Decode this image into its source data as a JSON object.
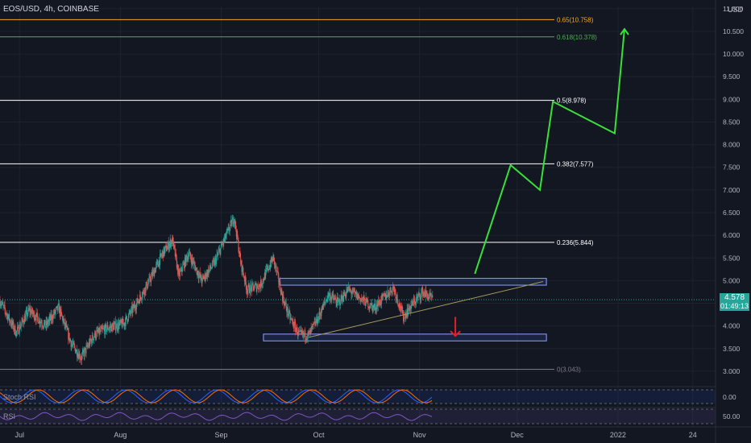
{
  "header": {
    "symbol": "EOS/USD, 4h, COINBASE",
    "currency": "USD"
  },
  "last_price": {
    "value": "4.578",
    "countdown": "01:49:13",
    "color": "#26a69a"
  },
  "indicators": {
    "stoch_rsi_label": "Stoch RSI",
    "stoch_rsi_axis": "0.00",
    "rsi_label": "RSI",
    "rsi_axis": "50.00"
  },
  "colors": {
    "background": "#131722",
    "up": "#26a69a",
    "down": "#ef5350",
    "projection": "#3ae03a",
    "breakdown": "#e3202a",
    "fib_top": "#f5a623",
    "fib_618": "#4caf50",
    "fib_mid": "#ffffff",
    "fib_zero": "#787b86",
    "trendline": "#a39a5c",
    "box_border": "#8fa1ff"
  },
  "chart_data": {
    "type": "candlestick",
    "y_axis": {
      "range": [
        2.75,
        11.05
      ],
      "ticks": [
        "11.000",
        "10.500",
        "10.000",
        "9.500",
        "9.000",
        "8.500",
        "8.000",
        "7.500",
        "7.000",
        "6.500",
        "6.000",
        "5.500",
        "5.000",
        "4.500",
        "4.000",
        "3.500",
        "3.000"
      ],
      "tick_values": [
        11,
        10.5,
        10,
        9.5,
        9,
        8.5,
        8,
        7.5,
        7,
        6.5,
        6,
        5.5,
        5,
        4.5,
        4,
        3.5,
        3
      ]
    },
    "x_axis": {
      "start_date": "2021-06-25",
      "end_date": "2022-01-31",
      "ticks": [
        {
          "label": "Jul",
          "date": "2021-07-01"
        },
        {
          "label": "Aug",
          "date": "2021-08-01"
        },
        {
          "label": "Sep",
          "date": "2021-09-01"
        },
        {
          "label": "Oct",
          "date": "2021-10-01"
        },
        {
          "label": "Nov",
          "date": "2021-11-01"
        },
        {
          "label": "Dec",
          "date": "2021-12-01"
        },
        {
          "label": "2022",
          "date": "2022-01-01"
        },
        {
          "label": "24",
          "date": "2022-01-24"
        }
      ]
    },
    "fib_levels": [
      {
        "ratio": "0.65",
        "value": 10.758,
        "label": "0.65(10.758)",
        "color": "#f5a623"
      },
      {
        "ratio": "0.618",
        "value": 10.378,
        "label": "0.618(10.378)",
        "color": "#4caf50"
      },
      {
        "ratio": "0.5",
        "value": 8.978,
        "label": "0.5(8.978)",
        "color": "#ffffff"
      },
      {
        "ratio": "0.382",
        "value": 7.577,
        "label": "0.382(7.577)",
        "color": "#ffffff"
      },
      {
        "ratio": "0.236",
        "value": 5.844,
        "label": "0.236(5.844)",
        "color": "#ffffff"
      },
      {
        "ratio": "0",
        "value": 3.043,
        "label": "0(3.043)",
        "color": "#787b86"
      }
    ],
    "close_path": [
      {
        "date": "2021-06-25",
        "close": 4.55
      },
      {
        "date": "2021-06-30",
        "close": 3.85
      },
      {
        "date": "2021-07-04",
        "close": 4.35
      },
      {
        "date": "2021-07-09",
        "close": 4.0
      },
      {
        "date": "2021-07-13",
        "close": 4.4
      },
      {
        "date": "2021-07-17",
        "close": 3.6
      },
      {
        "date": "2021-07-20",
        "close": 3.3
      },
      {
        "date": "2021-07-24",
        "close": 3.8
      },
      {
        "date": "2021-07-28",
        "close": 3.95
      },
      {
        "date": "2021-08-02",
        "close": 4.05
      },
      {
        "date": "2021-08-06",
        "close": 4.5
      },
      {
        "date": "2021-08-10",
        "close": 5.0
      },
      {
        "date": "2021-08-14",
        "close": 5.6
      },
      {
        "date": "2021-08-17",
        "close": 5.9
      },
      {
        "date": "2021-08-19",
        "close": 5.1
      },
      {
        "date": "2021-08-22",
        "close": 5.6
      },
      {
        "date": "2021-08-26",
        "close": 5.0
      },
      {
        "date": "2021-08-30",
        "close": 5.4
      },
      {
        "date": "2021-09-02",
        "close": 5.9
      },
      {
        "date": "2021-09-05",
        "close": 6.4
      },
      {
        "date": "2021-09-07",
        "close": 5.4
      },
      {
        "date": "2021-09-09",
        "close": 4.8
      },
      {
        "date": "2021-09-13",
        "close": 4.9
      },
      {
        "date": "2021-09-17",
        "close": 5.5
      },
      {
        "date": "2021-09-20",
        "close": 4.6
      },
      {
        "date": "2021-09-22",
        "close": 4.2
      },
      {
        "date": "2021-09-25",
        "close": 3.8
      },
      {
        "date": "2021-09-28",
        "close": 3.8
      },
      {
        "date": "2021-10-01",
        "close": 4.2
      },
      {
        "date": "2021-10-04",
        "close": 4.7
      },
      {
        "date": "2021-10-07",
        "close": 4.5
      },
      {
        "date": "2021-10-10",
        "close": 4.8
      },
      {
        "date": "2021-10-14",
        "close": 4.6
      },
      {
        "date": "2021-10-18",
        "close": 4.4
      },
      {
        "date": "2021-10-22",
        "close": 4.7
      },
      {
        "date": "2021-10-24",
        "close": 4.85
      },
      {
        "date": "2021-10-27",
        "close": 4.2
      },
      {
        "date": "2021-10-30",
        "close": 4.5
      },
      {
        "date": "2021-11-02",
        "close": 4.75
      },
      {
        "date": "2021-11-05",
        "close": 4.578
      }
    ],
    "rectangles": [
      {
        "date_start": "2021-09-19",
        "date_end": "2021-12-10",
        "top": 5.05,
        "bottom": 4.9
      },
      {
        "date_start": "2021-09-14",
        "date_end": "2021-12-10",
        "top": 3.82,
        "bottom": 3.67
      }
    ],
    "trendline": [
      {
        "date": "2021-09-28",
        "value": 3.75
      },
      {
        "date": "2021-12-09",
        "value": 4.98
      }
    ],
    "projection_path": [
      {
        "date": "2021-11-18",
        "value": 5.15
      },
      {
        "date": "2021-11-29",
        "value": 7.55
      },
      {
        "date": "2021-12-08",
        "value": 7.0
      },
      {
        "date": "2021-12-12",
        "value": 8.95
      },
      {
        "date": "2021-12-31",
        "value": 8.25
      },
      {
        "date": "2022-01-03",
        "value": 10.55
      }
    ],
    "breakdown_arrow": [
      {
        "date": "2021-11-12",
        "value": 4.2
      },
      {
        "date": "2021-11-12",
        "value": 3.78
      }
    ]
  }
}
